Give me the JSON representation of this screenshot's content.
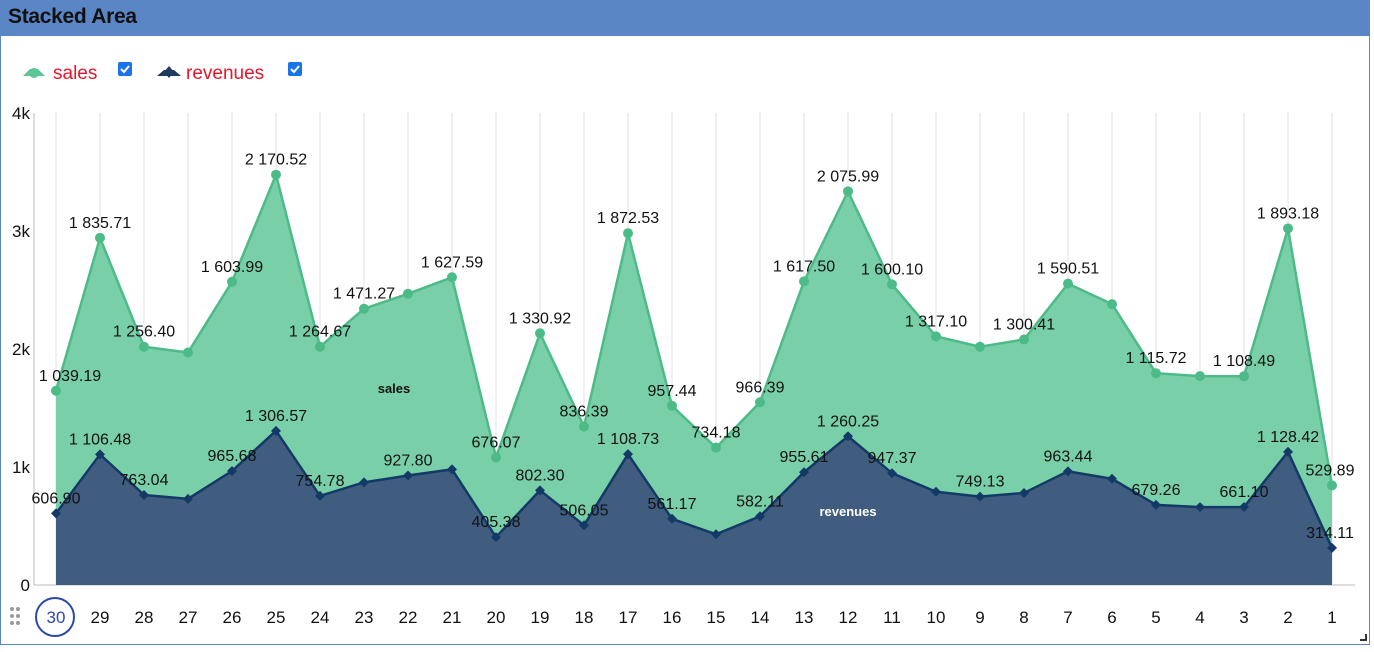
{
  "window": {
    "title": "Stacked Area"
  },
  "legend": [
    {
      "label": "sales",
      "color": "#5cc596",
      "checked": true
    },
    {
      "label": "revenues",
      "color": "#1e3a5f",
      "checked": true
    }
  ],
  "colors": {
    "sales_fill": "#78cfa8",
    "sales_line": "#4dbb88",
    "revenues_fill": "#405d80",
    "revenues_line": "#133a66",
    "grid": "#e2e2e2",
    "title_bar": "#5b86c6"
  },
  "chart_data": {
    "type": "area",
    "stacked": true,
    "categories": [
      "30",
      "29",
      "28",
      "27",
      "26",
      "25",
      "24",
      "23",
      "22",
      "21",
      "20",
      "19",
      "18",
      "17",
      "16",
      "15",
      "14",
      "13",
      "12",
      "11",
      "10",
      "9",
      "8",
      "7",
      "6",
      "5",
      "4",
      "3",
      "2",
      "1"
    ],
    "series": [
      {
        "name": "revenues",
        "values": [
          606.9,
          1106.48,
          763.04,
          730,
          965.68,
          1306.57,
          754.78,
          870,
          927.8,
          980,
          405.38,
          802.3,
          506.05,
          1108.73,
          561.17,
          430,
          582.11,
          955.61,
          1260.25,
          947.37,
          790,
          749.13,
          780,
          963.44,
          900,
          679.26,
          660,
          661.1,
          1128.42,
          314.11
        ],
        "labels": [
          "606.90",
          "1 106.48",
          "763.04",
          "",
          "965.68",
          "1 306.57",
          "754.78",
          "",
          "927.80",
          "",
          "405.38",
          "802.30",
          "506.05",
          "1 108.73",
          "561.17",
          "",
          "582.11",
          "955.61",
          "1 260.25",
          "947.37",
          "",
          "749.13",
          "",
          "963.44",
          "",
          "679.26",
          "",
          "661.10",
          "1 128.42",
          "314.11"
        ]
      },
      {
        "name": "sales",
        "values": [
          1039.19,
          1835.71,
          1256.4,
          1240,
          1603.99,
          2170.52,
          1264.67,
          1471.27,
          1540,
          1627.59,
          676.07,
          1330.92,
          836.39,
          1872.53,
          957.44,
          734.18,
          966.39,
          1617.5,
          2075.99,
          1600.1,
          1317.1,
          1270,
          1300.41,
          1590.51,
          1480,
          1115.72,
          1110,
          1108.49,
          1893.18,
          529.89
        ],
        "labels": [
          "1 039.19",
          "1 835.71",
          "1 256.40",
          "",
          "1 603.99",
          "2 170.52",
          "1 264.67",
          "1 471.27",
          "",
          "1 627.59",
          "676.07",
          "1 330.92",
          "836.39",
          "1 872.53",
          "957.44",
          "734.18",
          "966.39",
          "1 617.50",
          "2 075.99",
          "1 600.10",
          "1 317.10",
          "",
          "1 300.41",
          "1 590.51",
          "",
          "1 115.72",
          "",
          "1 108.49",
          "1 893.18",
          "529.89"
        ]
      }
    ],
    "series_annotations": {
      "sales": "sales",
      "revenues": "revenues"
    },
    "yticks": [
      "0",
      "1k",
      "2k",
      "3k",
      "4k"
    ],
    "ylim": [
      0,
      4000
    ],
    "xlabel": "",
    "ylabel": "",
    "grid": true,
    "legend_position": "top-left",
    "selected_category": "30"
  }
}
